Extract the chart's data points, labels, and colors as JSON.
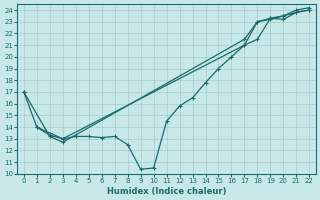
{
  "xlabel": "Humidex (Indice chaleur)",
  "xlim": [
    -0.5,
    22.5
  ],
  "ylim": [
    10,
    24.5
  ],
  "yticks": [
    10,
    11,
    12,
    13,
    14,
    15,
    16,
    17,
    18,
    19,
    20,
    21,
    22,
    23,
    24
  ],
  "xticks": [
    0,
    1,
    2,
    3,
    4,
    5,
    6,
    7,
    8,
    9,
    10,
    11,
    12,
    13,
    14,
    15,
    16,
    17,
    18,
    19,
    20,
    21,
    22
  ],
  "bg_color": "#c8e8e8",
  "line_color": "#1a6b6b",
  "grid_color": "#a8cccc",
  "line1_x": [
    0,
    1,
    3,
    17,
    18,
    19,
    20,
    21,
    22
  ],
  "line1_y": [
    17,
    14,
    13,
    21,
    21.5,
    23.3,
    23.2,
    23.8,
    24.0
  ],
  "line2_x": [
    0,
    2,
    3,
    17,
    18,
    19,
    20,
    21,
    22
  ],
  "line2_y": [
    17,
    13.2,
    12.7,
    21.5,
    23,
    23.3,
    23.5,
    24.0,
    24.2
  ],
  "line3_x": [
    1,
    2,
    3,
    4,
    5,
    6,
    7,
    8,
    9,
    10,
    11,
    12,
    13,
    14,
    15,
    16,
    17,
    18,
    19,
    20,
    21,
    22
  ],
  "line3_y": [
    14,
    13.3,
    13.0,
    13.2,
    13.2,
    13.1,
    13.2,
    12.5,
    10.4,
    10.5,
    14.5,
    15.8,
    16.5,
    17.8,
    19.0,
    20.0,
    21.0,
    23.0,
    23.2,
    23.5,
    23.8,
    24.0
  ]
}
